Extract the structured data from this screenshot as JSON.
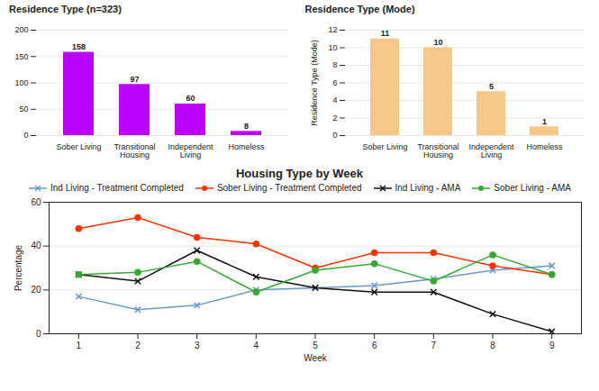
{
  "chart_data": [
    {
      "type": "bar",
      "title": "Residence Type (n=323)",
      "categories": [
        "Sober Living",
        "Transitional\nHousing",
        "Independent\nLiving",
        "Homeless"
      ],
      "values": [
        158,
        97,
        60,
        8
      ],
      "color": "#bb00ff",
      "ylim": [
        0,
        200
      ],
      "yticks": [
        0,
        50,
        100,
        150,
        200
      ],
      "grid": true,
      "data_labels": true
    },
    {
      "type": "bar",
      "title": "Residence Type (Mode)",
      "ylabel": "Residence Type (Mode)",
      "categories": [
        "Sober Living",
        "Transitional\nHousing",
        "Independent\nLiving",
        "Homeless"
      ],
      "values": [
        11,
        10,
        5,
        1
      ],
      "color": "#f5c888",
      "ylim": [
        0,
        12
      ],
      "yticks": [
        0,
        2,
        4,
        6,
        8,
        10,
        12
      ],
      "grid": true,
      "data_labels": true
    },
    {
      "type": "line",
      "title": "Housing Type by Week",
      "xlabel": "Week",
      "ylabel": "Percentage",
      "x": [
        1,
        2,
        3,
        4,
        5,
        6,
        7,
        8,
        9
      ],
      "xlim": [
        0.5,
        9.5
      ],
      "xticks": [
        1,
        2,
        3,
        4,
        5,
        6,
        7,
        8,
        9
      ],
      "ylim": [
        0,
        60
      ],
      "yticks": [
        0,
        20,
        40,
        60
      ],
      "grid": true,
      "legend": "top",
      "series": [
        {
          "name": "Ind Living - Treatment Completed",
          "color": "#6699cc",
          "marker": "x",
          "line_style": "solid",
          "values": [
            17,
            11,
            13,
            20,
            21,
            22,
            25,
            29,
            31
          ]
        },
        {
          "name": "Sober Living - Treatment Completed",
          "color": "#ff3300",
          "marker": "circle",
          "line_style": "solid",
          "values": [
            48,
            53,
            44,
            41,
            30,
            37,
            37,
            31,
            27
          ]
        },
        {
          "name": "Ind Living - AMA",
          "color": "#111111",
          "marker": "x",
          "line_style": "solid",
          "values": [
            27,
            24,
            38,
            26,
            21,
            19,
            19,
            9,
            1
          ]
        },
        {
          "name": "Sober Living - AMA",
          "color": "#33aa33",
          "marker": "circle",
          "line_style": "solid",
          "values": [
            27,
            28,
            33,
            19,
            29,
            32,
            24,
            36,
            27
          ]
        }
      ]
    }
  ]
}
